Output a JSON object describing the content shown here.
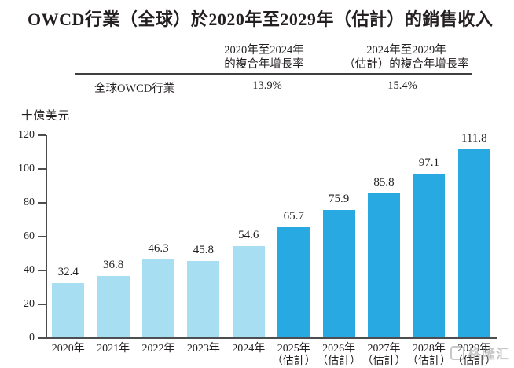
{
  "title": "OWCD行業（全球）於2020年至2029年（估計）的銷售收入",
  "table": {
    "col1_header_line1": "2020年至2024年",
    "col1_header_line2": "的複合年增長率",
    "col2_header_line1": "2024年至2029年",
    "col2_header_line2": "（估計）的複合年增長率",
    "row_label": "全球OWCD行業",
    "col1_value": "13.9%",
    "col2_value": "15.4%"
  },
  "chart_data": {
    "type": "bar",
    "title": "OWCD行業（全球）於2020年至2029年（估計）的銷售收入",
    "unit_label": "十億美元",
    "ylabel": "十億美元",
    "xlabel": "",
    "ylim": [
      0,
      120
    ],
    "yticks": [
      0,
      20,
      40,
      60,
      80,
      100,
      120
    ],
    "grid": false,
    "legend": "none",
    "categories": [
      {
        "label": "2020年",
        "sublabel": ""
      },
      {
        "label": "2021年",
        "sublabel": ""
      },
      {
        "label": "2022年",
        "sublabel": ""
      },
      {
        "label": "2023年",
        "sublabel": ""
      },
      {
        "label": "2024年",
        "sublabel": ""
      },
      {
        "label": "2025年",
        "sublabel": "（估計）"
      },
      {
        "label": "2026年",
        "sublabel": "（估計）"
      },
      {
        "label": "2027年",
        "sublabel": "（估計）"
      },
      {
        "label": "2028年",
        "sublabel": "（估計）"
      },
      {
        "label": "2029年",
        "sublabel": "（估計）"
      }
    ],
    "values": [
      32.4,
      36.8,
      46.3,
      45.8,
      54.6,
      65.7,
      75.9,
      85.8,
      97.1,
      111.8
    ],
    "value_labels": [
      "32.4",
      "36.8",
      "46.3",
      "45.8",
      "54.6",
      "65.7",
      "75.9",
      "85.8",
      "97.1",
      "111.8"
    ],
    "estimate_from_index": 5,
    "colors": {
      "actual": "#a7def2",
      "estimate": "#29a9e1"
    }
  },
  "watermark": {
    "text": "格隆汇"
  }
}
